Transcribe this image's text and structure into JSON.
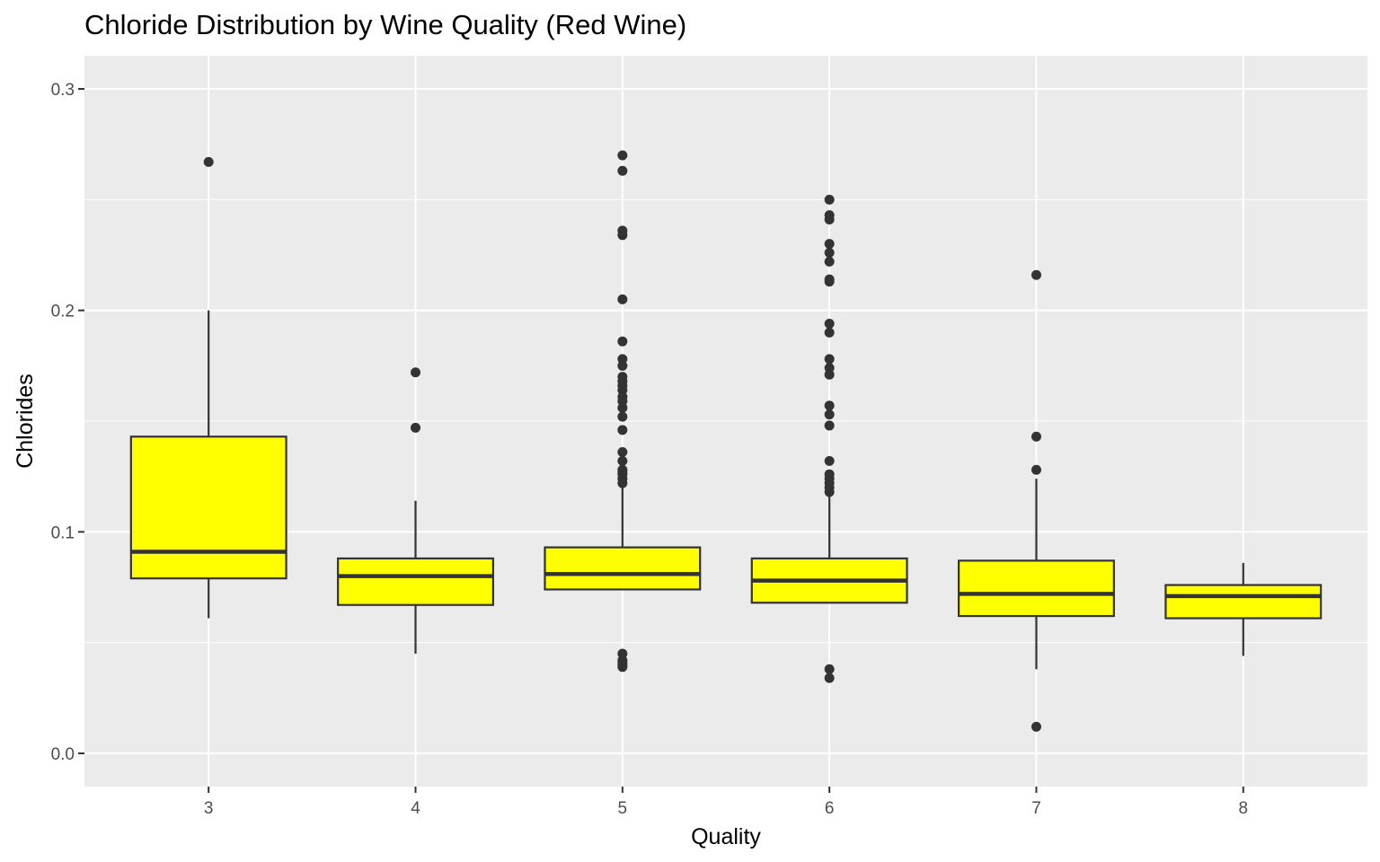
{
  "chart_data": {
    "type": "boxplot",
    "title": "Chloride Distribution by Wine Quality (Red Wine)",
    "xlabel": "Quality",
    "ylabel": "Chlorides",
    "categories": [
      "3",
      "4",
      "5",
      "6",
      "7",
      "8"
    ],
    "ylim": [
      -0.015,
      0.315
    ],
    "yticks": [
      0.0,
      0.1,
      0.2,
      0.3
    ],
    "ytick_labels": [
      "0.0",
      "0.1",
      "0.2",
      "0.3"
    ],
    "grid": true,
    "legend": "none",
    "boxes": [
      {
        "category": "3",
        "whisker_low": 0.061,
        "q1": 0.079,
        "median": 0.091,
        "q3": 0.143,
        "whisker_high": 0.2,
        "outliers": [
          0.267
        ]
      },
      {
        "category": "4",
        "whisker_low": 0.045,
        "q1": 0.067,
        "median": 0.08,
        "q3": 0.088,
        "whisker_high": 0.114,
        "outliers": [
          0.147,
          0.172
        ]
      },
      {
        "category": "5",
        "whisker_low": 0.074,
        "q1": 0.074,
        "median": 0.081,
        "q3": 0.093,
        "whisker_high": 0.121,
        "outliers": [
          0.039,
          0.04,
          0.041,
          0.042,
          0.045,
          0.122,
          0.124,
          0.126,
          0.127,
          0.128,
          0.132,
          0.136,
          0.146,
          0.152,
          0.156,
          0.159,
          0.161,
          0.164,
          0.166,
          0.168,
          0.17,
          0.175,
          0.178,
          0.186,
          0.205,
          0.234,
          0.236,
          0.263,
          0.27
        ]
      },
      {
        "category": "6",
        "whisker_low": 0.068,
        "q1": 0.068,
        "median": 0.078,
        "q3": 0.088,
        "whisker_high": 0.117,
        "outliers": [
          0.034,
          0.038,
          0.118,
          0.12,
          0.122,
          0.124,
          0.126,
          0.132,
          0.148,
          0.153,
          0.157,
          0.171,
          0.174,
          0.178,
          0.19,
          0.194,
          0.213,
          0.214,
          0.222,
          0.226,
          0.23,
          0.241,
          0.243,
          0.25
        ]
      },
      {
        "category": "7",
        "whisker_low": 0.038,
        "q1": 0.062,
        "median": 0.072,
        "q3": 0.087,
        "whisker_high": 0.124,
        "outliers": [
          0.012,
          0.128,
          0.143,
          0.216
        ]
      },
      {
        "category": "8",
        "whisker_low": 0.044,
        "q1": 0.061,
        "median": 0.071,
        "q3": 0.076,
        "whisker_high": 0.086,
        "outliers": []
      }
    ],
    "colors": {
      "box_fill": "#ffff00",
      "box_stroke": "#333333",
      "outlier": "#333333",
      "panel_bg": "#ebebeb",
      "grid": "#ffffff"
    }
  }
}
